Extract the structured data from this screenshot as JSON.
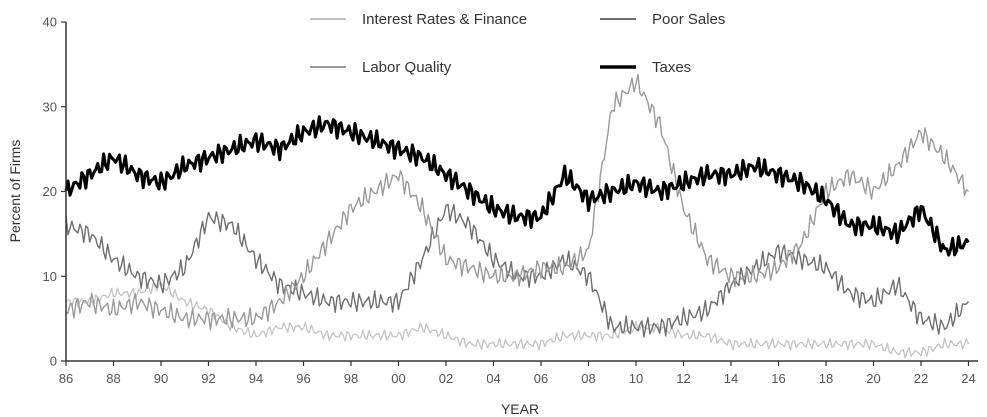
{
  "chart_data": {
    "type": "line",
    "title": "",
    "xlabel": "YEAR",
    "ylabel": "Percent of Firms",
    "xlim": [
      1986,
      2024.4
    ],
    "ylim": [
      0,
      40
    ],
    "x_tick_values": [
      1986,
      1988,
      1990,
      1992,
      1994,
      1996,
      1998,
      2000,
      2002,
      2004,
      2006,
      2008,
      2010,
      2012,
      2014,
      2016,
      2018,
      2020,
      2022,
      2024
    ],
    "x_tick_labels": [
      "86",
      "88",
      "90",
      "92",
      "94",
      "96",
      "98",
      "00",
      "02",
      "04",
      "06",
      "08",
      "10",
      "12",
      "14",
      "16",
      "18",
      "20",
      "22",
      "24"
    ],
    "y_ticks": [
      0,
      10,
      20,
      30,
      40
    ],
    "grid": false,
    "legend_position": "top",
    "series": [
      {
        "name": "Interest Rates & Finance",
        "color": "#c4c4c4",
        "x": [
          1986,
          1987,
          1988,
          1989,
          1990,
          1991,
          1992,
          1993,
          1994,
          1995,
          1996,
          1997,
          1998,
          1999,
          2000,
          2001,
          2002,
          2003,
          2004,
          2005,
          2006,
          2007,
          2008,
          2009,
          2010,
          2011,
          2012,
          2013,
          2014,
          2015,
          2016,
          2017,
          2018,
          2019,
          2020,
          2021,
          2022,
          2023,
          2024
        ],
        "y": [
          7,
          7,
          8,
          8,
          9,
          7,
          6,
          4,
          3,
          4,
          4,
          3,
          3,
          3,
          3,
          4,
          3,
          2,
          2,
          2,
          2,
          3,
          3,
          3,
          4,
          4,
          3,
          3,
          2,
          2,
          2,
          2,
          2,
          2,
          2,
          1,
          1,
          2,
          2
        ]
      },
      {
        "name": "Poor Sales",
        "color": "#6e6e6e",
        "x": [
          1986,
          1987,
          1988,
          1989,
          1990,
          1991,
          1992,
          1993,
          1994,
          1995,
          1996,
          1997,
          1998,
          1999,
          2000,
          2001,
          2002,
          2003,
          2004,
          2005,
          2006,
          2007,
          2008,
          2009,
          2010,
          2011,
          2012,
          2013,
          2014,
          2015,
          2016,
          2017,
          2018,
          2019,
          2020,
          2021,
          2022,
          2023,
          2024
        ],
        "y": [
          16,
          15,
          12,
          10,
          9,
          11,
          17,
          16,
          12,
          9,
          8,
          7,
          7,
          7,
          7,
          12,
          18,
          16,
          12,
          10,
          10,
          12,
          10,
          4,
          4,
          4,
          5,
          6,
          9,
          11,
          13,
          12,
          11,
          8,
          7,
          9,
          5,
          4,
          7
        ]
      },
      {
        "name": "Labor Quality",
        "color": "#9a9a9a",
        "x": [
          1986,
          1987,
          1988,
          1989,
          1990,
          1991,
          1992,
          1993,
          1994,
          1995,
          1996,
          1997,
          1998,
          1999,
          2000,
          2001,
          2002,
          2003,
          2004,
          2005,
          2006,
          2007,
          2008,
          2009,
          2010,
          2011,
          2012,
          2013,
          2014,
          2015,
          2016,
          2017,
          2018,
          2019,
          2020,
          2021,
          2022,
          2023,
          2024
        ],
        "y": [
          6,
          7,
          6,
          7,
          6,
          5,
          5,
          5,
          5,
          7,
          10,
          14,
          18,
          20,
          22,
          18,
          12,
          11,
          10,
          10,
          11,
          11,
          13,
          30,
          33,
          28,
          18,
          12,
          10,
          10,
          11,
          14,
          20,
          22,
          20,
          23,
          27,
          24,
          20
        ]
      },
      {
        "name": "Taxes",
        "color": "#000000",
        "x": [
          1986,
          1987,
          1988,
          1989,
          1990,
          1991,
          1992,
          1993,
          1994,
          1995,
          1996,
          1997,
          1998,
          1999,
          2000,
          2001,
          2002,
          2003,
          2004,
          2005,
          2006,
          2007,
          2008,
          2009,
          2010,
          2011,
          2012,
          2013,
          2014,
          2015,
          2016,
          2017,
          2018,
          2019,
          2020,
          2021,
          2022,
          2023,
          2024
        ],
        "y": [
          20,
          22,
          24,
          22,
          21,
          23,
          24,
          25,
          26,
          25,
          27,
          28,
          27,
          26,
          25,
          24,
          22,
          20,
          18,
          17,
          17,
          22,
          19,
          20,
          21,
          20,
          21,
          22,
          22,
          23,
          22,
          21,
          19,
          16,
          16,
          15,
          18,
          13,
          14
        ]
      }
    ]
  }
}
